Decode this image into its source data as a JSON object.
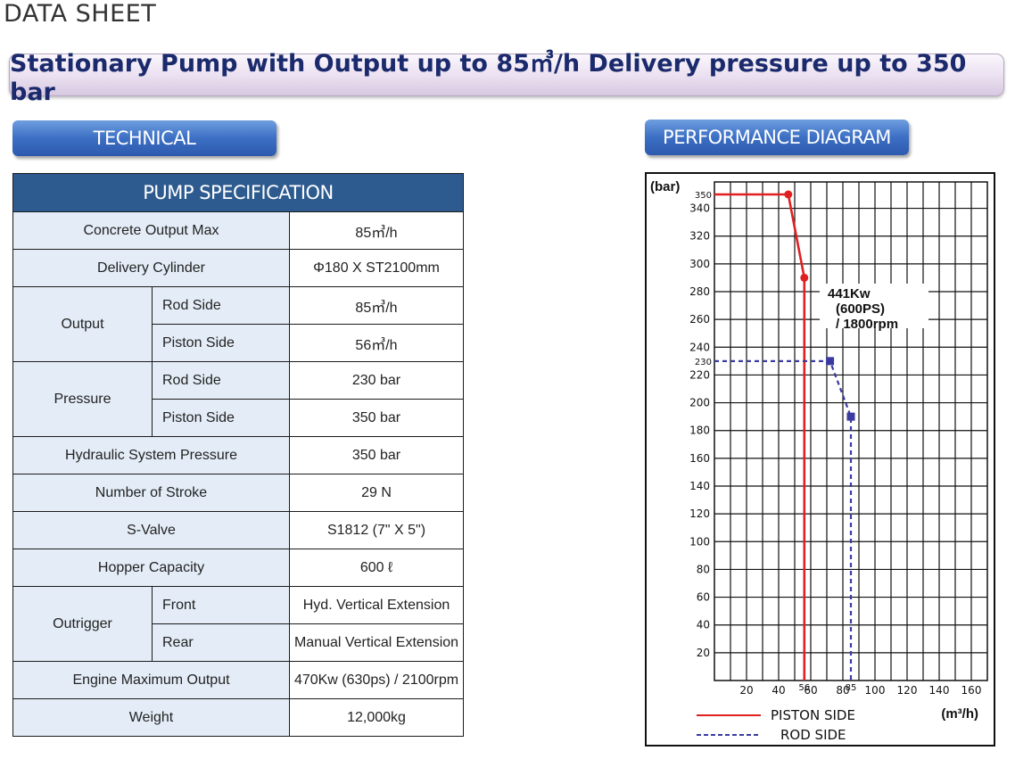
{
  "page_header": "DATA SHEET",
  "banner_title": "Stationary Pump with Output up to 85㎥/h Delivery pressure up to 350 bar",
  "technical_tab": "TECHNICAL",
  "performance_tab": "PERFORMANCE DIAGRAM",
  "spec_table": {
    "header": "PUMP SPECIFICATION",
    "rows": {
      "concrete_output_max": {
        "label": "Concrete Output Max",
        "value": "85㎥/h"
      },
      "delivery_cylinder": {
        "label": "Delivery Cylinder",
        "value": "Φ180 X ST2100mm"
      },
      "output": {
        "label": "Output",
        "rod_side": {
          "label": "Rod Side",
          "value": "85㎥/h"
        },
        "piston_side": {
          "label": "Piston Side",
          "value": "56㎥/h"
        }
      },
      "pressure": {
        "label": "Pressure",
        "rod_side": {
          "label": "Rod Side",
          "value": "230 bar"
        },
        "piston_side": {
          "label": "Piston Side",
          "value": "350 bar"
        }
      },
      "hydraulic_system_pressure": {
        "label": "Hydraulic System Pressure",
        "value": "350 bar"
      },
      "number_of_stroke": {
        "label": "Number of Stroke",
        "value": "29 N"
      },
      "s_valve": {
        "label": "S-Valve",
        "value": "S1812 (7\" X 5\")"
      },
      "hopper_capacity": {
        "label": "Hopper Capacity",
        "value": "600 ℓ"
      },
      "outrigger": {
        "label": "Outrigger",
        "front": {
          "label": "Front",
          "value": "Hyd. Vertical Extension"
        },
        "rear": {
          "label": "Rear",
          "value": "Manual Vertical Extension"
        }
      },
      "engine_maximum_output": {
        "label": "Engine Maximum Output",
        "value": "470Kw (630ps) / 2100rpm"
      },
      "weight": {
        "label": "Weight",
        "value": "12,000kg"
      }
    }
  },
  "chart_data": {
    "type": "line",
    "ylabel": "(bar)",
    "xlabel": "(m³/h)",
    "xlim": [
      0,
      170
    ],
    "ylim": [
      0,
      350
    ],
    "x_ticks": [
      "20",
      "40",
      "60",
      "80",
      "100",
      "120",
      "140",
      "160"
    ],
    "x_special_ticks": [
      "56",
      "85"
    ],
    "y_ticks": [
      "20",
      "40",
      "60",
      "80",
      "100",
      "120",
      "140",
      "160",
      "180",
      "200",
      "220",
      "240",
      "260",
      "280",
      "300",
      "320",
      "340"
    ],
    "y_special_ticks": [
      "350",
      "230"
    ],
    "grid": true,
    "annotation": [
      "441Kw",
      "(600PS)",
      "/ 1800rpm"
    ],
    "series": [
      {
        "name": "PISTON SIDE",
        "color": "#e02020",
        "style": "solid",
        "points": [
          [
            0,
            350
          ],
          [
            46,
            350
          ],
          [
            56,
            290
          ],
          [
            56,
            0
          ]
        ]
      },
      {
        "name": "ROD SIDE",
        "color": "#3a3aa0",
        "style": "dashed",
        "points": [
          [
            0,
            230
          ],
          [
            72,
            230
          ],
          [
            85,
            190
          ],
          [
            85,
            0
          ]
        ]
      }
    ],
    "legend_position": "bottom-left"
  }
}
